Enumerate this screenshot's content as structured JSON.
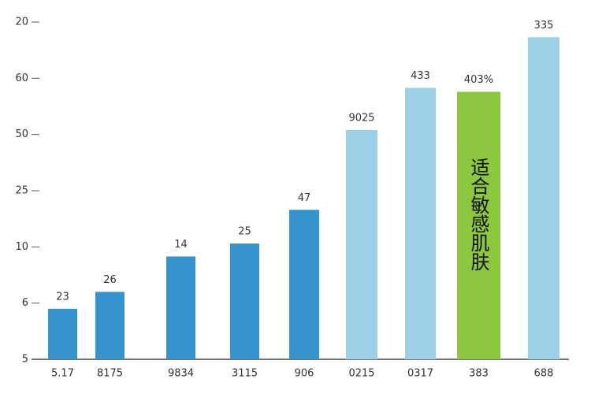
{
  "chart_data": {
    "type": "bar",
    "categories": [
      "5.17",
      "8175",
      "9834",
      "3115",
      "906",
      "0215",
      "0317",
      "383",
      "688"
    ],
    "values": [
      0.9,
      1.2,
      1.83,
      2.06,
      2.66,
      4.08,
      4.83,
      4.76,
      5.73
    ],
    "value_labels": [
      "23",
      "26",
      "14",
      "25",
      "47",
      "9025",
      "433",
      "403%",
      "335"
    ],
    "colors": [
      "#3593cd",
      "#3593cd",
      "#3593cd",
      "#3593cd",
      "#3593cd",
      "#9dd0e6",
      "#9dd0e6",
      "#8dc63f",
      "#9dd0e6"
    ],
    "label_colors": [
      "#333333",
      "#333333",
      "#333333",
      "#333333",
      "#333333",
      "#333333",
      "#333333",
      "#e8891d",
      "#333333"
    ],
    "annotation": "适合敏感肌肤",
    "ylim": [
      0,
      6
    ],
    "yticks": [
      {
        "value": 0,
        "label": "5"
      },
      {
        "value": 1,
        "label": "6"
      },
      {
        "value": 2,
        "label": "10"
      },
      {
        "value": 3,
        "label": "25"
      },
      {
        "value": 4,
        "label": "50"
      },
      {
        "value": 5,
        "label": "60"
      },
      {
        "value": 6,
        "label": "20"
      }
    ]
  }
}
